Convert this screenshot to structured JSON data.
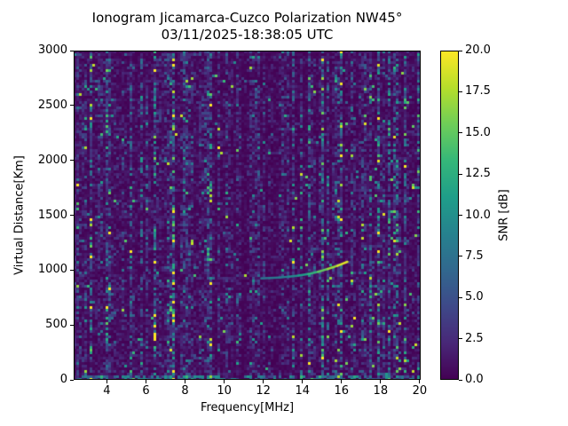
{
  "chart_data": {
    "type": "heatmap",
    "title": "Ionogram Jicamarca-Cuzco Polarization NW45°",
    "subtitle": "03/11/2025-18:38:05 UTC",
    "xlabel": "Frequency[MHz]",
    "ylabel": "Virtual Distance[Km]",
    "xlim": [
      2.3,
      20.05
    ],
    "ylim": [
      0,
      3000
    ],
    "xticks": [
      4,
      6,
      8,
      10,
      12,
      14,
      16,
      18,
      20
    ],
    "yticks": [
      0,
      500,
      1000,
      1500,
      2000,
      2500,
      3000
    ],
    "grid": false,
    "colorbar": {
      "label": "SNR [dB]",
      "min": 0,
      "max": 20,
      "ticks": [
        "0.0",
        "2.5",
        "5.0",
        "7.5",
        "10.0",
        "12.5",
        "15.0",
        "17.5",
        "20.0"
      ],
      "position": "right",
      "colormap_name": "viridis",
      "colormap": [
        "#440154",
        "#482878",
        "#3e4989",
        "#31688e",
        "#26828e",
        "#1f9e89",
        "#35b779",
        "#6ece58",
        "#b5de2b",
        "#fde725"
      ]
    },
    "background_noise": {
      "description": "Dense speckled RF noise over full frequency-range plane, mostly 0-5 dB (dark purple) with vertical interference bands of blue/teal speckle, occasional bright green-yellow pixels, denser clusters near 17-20 MHz, and a teal clutter band at 0 km range",
      "mean_snr_db": 1.7,
      "speckle_fraction": 0.08
    },
    "echo_trace": {
      "description": "Oblique ionospheric echo trace rising in virtual distance with frequency, brightening toward its high-frequency end",
      "points": [
        {
          "freq_mhz": 11.9,
          "range_km": 925,
          "snr_db": 7
        },
        {
          "freq_mhz": 12.3,
          "range_km": 928,
          "snr_db": 8
        },
        {
          "freq_mhz": 12.8,
          "range_km": 932,
          "snr_db": 8
        },
        {
          "freq_mhz": 13.3,
          "range_km": 940,
          "snr_db": 9
        },
        {
          "freq_mhz": 13.8,
          "range_km": 950,
          "snr_db": 10
        },
        {
          "freq_mhz": 14.3,
          "range_km": 965,
          "snr_db": 12
        },
        {
          "freq_mhz": 14.8,
          "range_km": 985,
          "snr_db": 14
        },
        {
          "freq_mhz": 15.3,
          "range_km": 1010,
          "snr_db": 16
        },
        {
          "freq_mhz": 15.8,
          "range_km": 1040,
          "snr_db": 18
        },
        {
          "freq_mhz": 16.3,
          "range_km": 1075,
          "snr_db": 20
        }
      ]
    }
  }
}
